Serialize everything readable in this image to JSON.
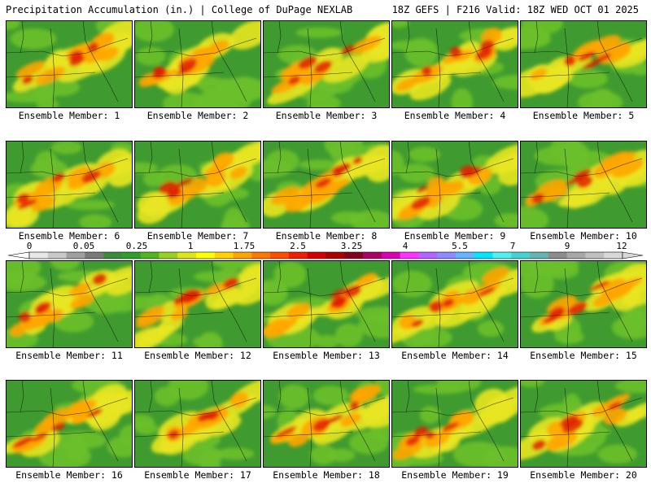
{
  "header": {
    "left_text": "Precipitation Accumulation (in.) | College of DuPage NEXLAB",
    "right_text": "18Z GEFS | F216 Valid: 18Z WED OCT 01 2025"
  },
  "members": [
    {
      "label": "Ensemble Member: 1",
      "member": 1
    },
    {
      "label": "Ensemble Member: 2",
      "member": 2
    },
    {
      "label": "Ensemble Member: 3",
      "member": 3
    },
    {
      "label": "Ensemble Member: 4",
      "member": 4
    },
    {
      "label": "Ensemble Member: 5",
      "member": 5
    },
    {
      "label": "Ensemble Member: 6",
      "member": 6
    },
    {
      "label": "Ensemble Member: 7",
      "member": 7
    },
    {
      "label": "Ensemble Member: 8",
      "member": 8
    },
    {
      "label": "Ensemble Member: 9",
      "member": 9
    },
    {
      "label": "Ensemble Member: 10",
      "member": 10
    },
    {
      "label": "Ensemble Member: 11",
      "member": 11
    },
    {
      "label": "Ensemble Member: 12",
      "member": 12
    },
    {
      "label": "Ensemble Member: 13",
      "member": 13
    },
    {
      "label": "Ensemble Member: 14",
      "member": 14
    },
    {
      "label": "Ensemble Member: 15",
      "member": 15
    },
    {
      "label": "Ensemble Member: 16",
      "member": 16
    },
    {
      "label": "Ensemble Member: 17",
      "member": 17
    },
    {
      "label": "Ensemble Member: 18",
      "member": 18
    },
    {
      "label": "Ensemble Member: 19",
      "member": 19
    },
    {
      "label": "Ensemble Member: 20",
      "member": 20
    }
  ],
  "colorbar": {
    "tick_labels": [
      "0",
      "0.05",
      "0.25",
      "1",
      "1.75",
      "2.5",
      "3.25",
      "4",
      "5.5",
      "7",
      "9",
      "12"
    ],
    "colors": [
      "#e8e8e8",
      "#c8c8c8",
      "#a0a0a0",
      "#7a7a7a",
      "#3d8a3d",
      "#2f9e2f",
      "#54b41e",
      "#98d21e",
      "#dce614",
      "#ffff00",
      "#ffd200",
      "#ffa500",
      "#ff7800",
      "#ff4b00",
      "#f01e00",
      "#d20000",
      "#aa0000",
      "#82001e",
      "#aa0064",
      "#dc00b4",
      "#ff32ff",
      "#b464ff",
      "#8c8cff",
      "#64b4ff",
      "#00e6ff",
      "#50f0f0",
      "#46d2d2",
      "#64b4b4",
      "#8c8c8c",
      "#a8a8a8",
      "#c0c0c0",
      "#d8d8d8"
    ]
  }
}
